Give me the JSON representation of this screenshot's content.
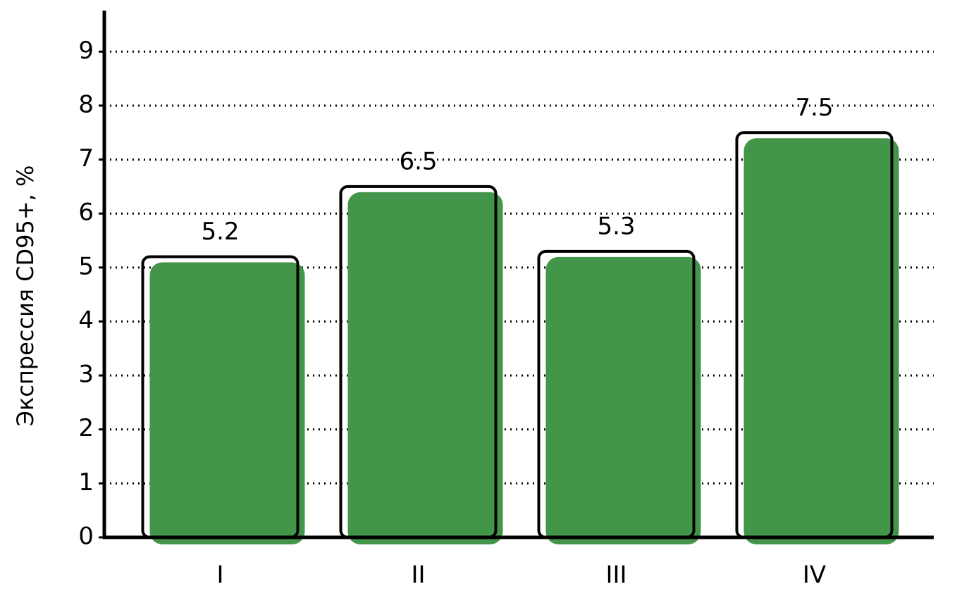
{
  "chart_data": {
    "type": "bar",
    "y_label": "Экспрессия CD95+, %",
    "categories": [
      "I",
      "II",
      "III",
      "IV"
    ],
    "values": [
      5.2,
      6.5,
      5.3,
      7.5
    ],
    "color": "#43954a",
    "ylim": [
      0,
      9.8
    ],
    "yticks": [
      0,
      1,
      2,
      3,
      4,
      5,
      6,
      7,
      8,
      9
    ],
    "grid": true
  }
}
